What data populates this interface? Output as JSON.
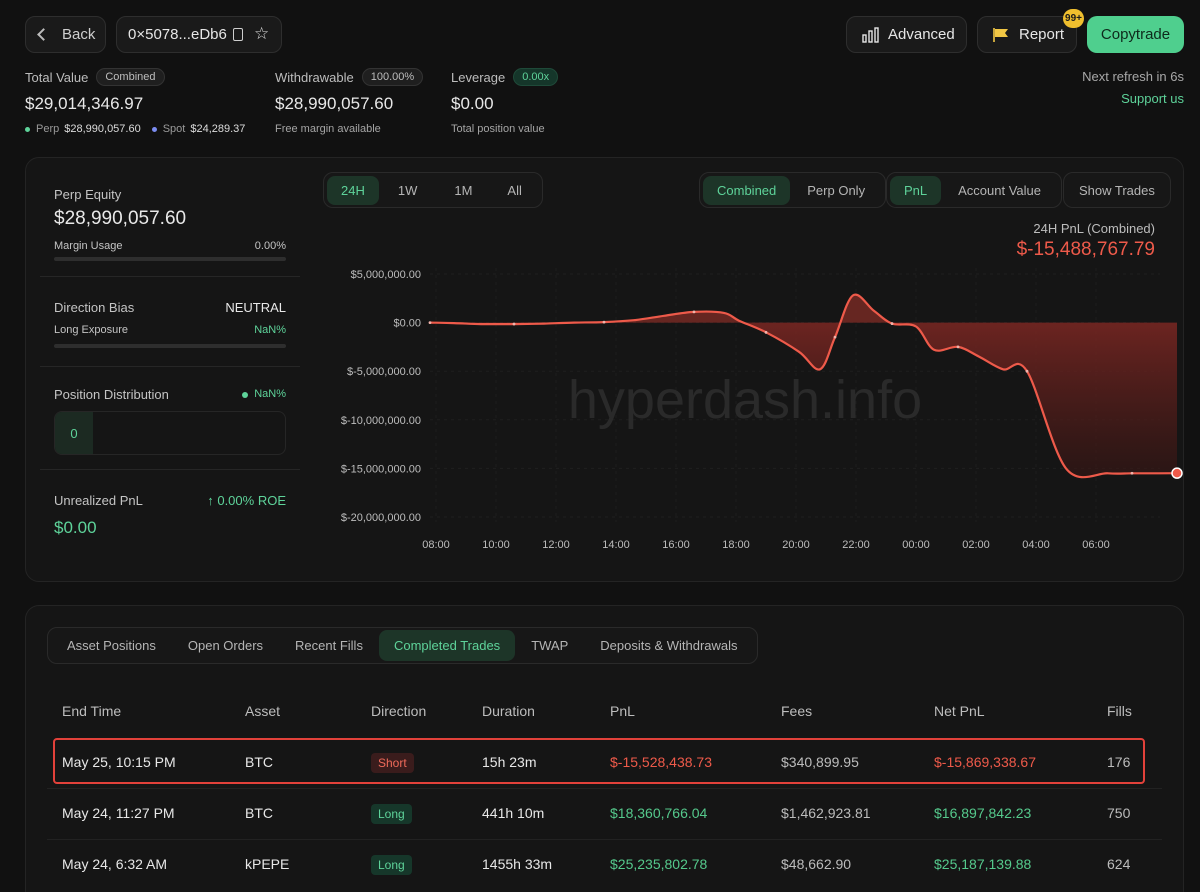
{
  "header": {
    "back_label": "Back",
    "address": "0×5078...eDb6",
    "advanced_label": "Advanced",
    "report_label": "Report",
    "report_badge": "99+",
    "copytrade_label": "Copytrade",
    "refresh_text": "Next refresh in 6s",
    "support_label": "Support us"
  },
  "summary": {
    "total_value_label": "Total Value",
    "total_value_pill": "Combined",
    "total_value": "$29,014,346.97",
    "perp_label": "Perp",
    "perp_value": "$28,990,057.60",
    "spot_label": "Spot",
    "spot_value": "$24,289.37",
    "withdrawable_label": "Withdrawable",
    "withdrawable_pill": "100.00%",
    "withdrawable_value": "$28,990,057.60",
    "withdrawable_sub": "Free margin available",
    "leverage_label": "Leverage",
    "leverage_pill": "0.00x",
    "leverage_value": "$0.00",
    "leverage_sub": "Total position value"
  },
  "left_panel": {
    "perp_equity_label": "Perp Equity",
    "perp_equity_value": "$28,990,057.60",
    "margin_usage_label": "Margin Usage",
    "margin_usage_value": "0.00%",
    "direction_bias_label": "Direction Bias",
    "direction_bias_value": "NEUTRAL",
    "long_exposure_label": "Long Exposure",
    "long_exposure_value": "NaN%",
    "position_distribution_label": "Position Distribution",
    "position_distribution_value": "NaN%",
    "position_count": "0",
    "unrealized_label": "Unrealized PnL",
    "roe_text": "0.00% ROE",
    "unrealized_value": "$0.00"
  },
  "chart_controls": {
    "ranges": [
      "24H",
      "1W",
      "1M",
      "All"
    ],
    "active_range": "24H",
    "modes": [
      "Combined",
      "Perp Only"
    ],
    "active_mode": "Combined",
    "metrics": [
      "PnL",
      "Account Value"
    ],
    "active_metric": "PnL",
    "show_trades_label": "Show Trades",
    "pnl_title": "24H PnL (Combined)",
    "pnl_value": "$-15,488,767.79"
  },
  "watermark": "hyperdash.info",
  "colors": {
    "accent_green": "#5ed39a",
    "loss_red": "#ee5a4a",
    "copytrade_bg": "#4fcf8e"
  },
  "chart_data": {
    "type": "area",
    "title": "24H PnL (Combined)",
    "x_ticks": [
      "08:00",
      "10:00",
      "12:00",
      "14:00",
      "16:00",
      "18:00",
      "20:00",
      "22:00",
      "00:00",
      "02:00",
      "04:00",
      "06:00"
    ],
    "y_ticks": [
      "$5,000,000.00",
      "$0.00",
      "$-5,000,000.00",
      "$-10,000,000.00",
      "$-15,000,000.00",
      "$-20,000,000.00"
    ],
    "ylim": [
      -20000000,
      5000000
    ],
    "xlim": [
      0,
      25
    ],
    "x_unit": "hours since 08:00",
    "series": [
      {
        "x": [
          -0.2,
          0.6,
          1.5,
          2.6,
          3.6,
          4.6,
          5.6,
          6.6,
          7.6,
          8.6,
          9.6,
          10.1,
          11.0,
          12.1,
          12.8,
          13.3,
          13.9,
          14.6,
          15.2,
          16.0,
          16.6,
          17.4,
          18.1,
          18.9,
          19.7,
          21.0,
          22.4,
          23.2,
          24.1,
          24.7
        ],
        "y": [
          0,
          -50000,
          -150000,
          -150000,
          -100000,
          0,
          50000,
          250000,
          700000,
          1100000,
          1000000,
          200000,
          -1000000,
          -3000000,
          -4800000,
          -1500000,
          2800000,
          1200000,
          -100000,
          -400000,
          -2800000,
          -2500000,
          -3500000,
          -4800000,
          -5000000,
          -15000000,
          -15500000,
          -15500000,
          -15500000,
          -15489000
        ]
      }
    ]
  },
  "tabs": {
    "items": [
      "Asset Positions",
      "Open Orders",
      "Recent Fills",
      "Completed Trades",
      "TWAP",
      "Deposits & Withdrawals"
    ],
    "active": "Completed Trades"
  },
  "table": {
    "headers": [
      "End Time",
      "Asset",
      "Direction",
      "Duration",
      "PnL",
      "Fees",
      "Net PnL",
      "Fills"
    ],
    "rows": [
      {
        "end_time": "May 25, 10:15 PM",
        "asset": "BTC",
        "direction": "Short",
        "duration": "15h 23m",
        "pnl": "$-15,528,438.73",
        "fees": "$340,899.95",
        "net_pnl": "$-15,869,338.67",
        "fills": "176"
      },
      {
        "end_time": "May 24, 11:27 PM",
        "asset": "BTC",
        "direction": "Long",
        "duration": "441h 10m",
        "pnl": "$18,360,766.04",
        "fees": "$1,462,923.81",
        "net_pnl": "$16,897,842.23",
        "fills": "750"
      },
      {
        "end_time": "May 24, 6:32 AM",
        "asset": "kPEPE",
        "direction": "Long",
        "duration": "1455h 33m",
        "pnl": "$25,235,802.78",
        "fees": "$48,662.90",
        "net_pnl": "$25,187,139.88",
        "fills": "624"
      }
    ]
  }
}
